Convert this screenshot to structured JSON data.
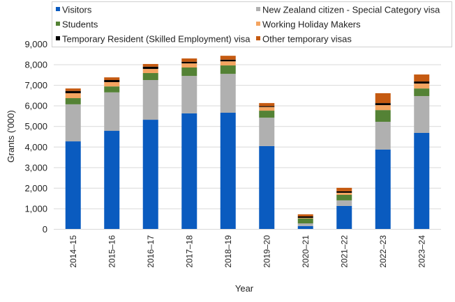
{
  "chart_data": {
    "type": "bar",
    "stacked": true,
    "title": "",
    "xlabel": "Year",
    "ylabel": "Grants ('000)",
    "ylim": [
      0,
      9000
    ],
    "yticks": [
      "0",
      "1,000",
      "2,000",
      "3,000",
      "4,000",
      "5,000",
      "6,000",
      "7,000",
      "8,000",
      "9,000"
    ],
    "grid": true,
    "legend_position": "top",
    "categories": [
      "2014–15",
      "2015–16",
      "2016–17",
      "2017–18",
      "2018–19",
      "2019–20",
      "2020–21",
      "2021–22",
      "2022–23",
      "2023–24"
    ],
    "series": [
      {
        "name": "Visitors",
        "color": "#0a5bbf",
        "values": [
          4260,
          4770,
          5310,
          5620,
          5650,
          4030,
          140,
          1120,
          3860,
          4670
        ]
      },
      {
        "name": "New Zealand citizen - Special Category visa",
        "color": "#b0b0b0",
        "values": [
          1800,
          1870,
          1930,
          1820,
          1890,
          1380,
          130,
          270,
          1350,
          1790
        ]
      },
      {
        "name": "Students",
        "color": "#548235",
        "values": [
          300,
          290,
          340,
          410,
          410,
          340,
          240,
          270,
          570,
          370
        ]
      },
      {
        "name": "Working Holiday Makers",
        "color": "#f4a460",
        "values": [
          240,
          210,
          200,
          200,
          200,
          180,
          30,
          100,
          240,
          240
        ]
      },
      {
        "name": "Temporary Resident (Skilled Employment) visa",
        "color": "#000000",
        "values": [
          110,
          100,
          110,
          80,
          80,
          40,
          70,
          70,
          100,
          100
        ]
      },
      {
        "name": "Other temporary visas",
        "color": "#c55a11",
        "values": [
          120,
          130,
          130,
          160,
          190,
          150,
          100,
          170,
          480,
          340
        ]
      }
    ]
  }
}
